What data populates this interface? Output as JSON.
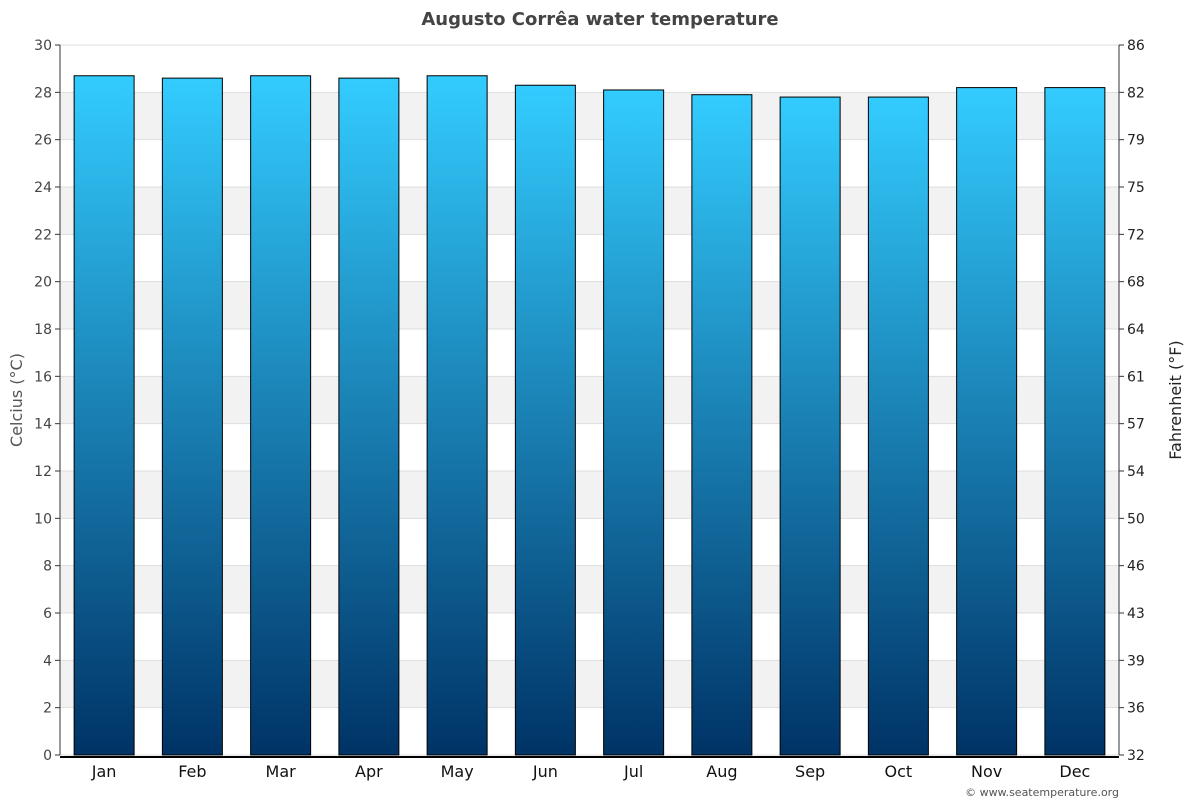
{
  "chart_data": {
    "type": "bar",
    "title": "Augusto Corrêa water temperature",
    "categories": [
      "Jan",
      "Feb",
      "Mar",
      "Apr",
      "May",
      "Jun",
      "Jul",
      "Aug",
      "Sep",
      "Oct",
      "Nov",
      "Dec"
    ],
    "values": [
      28.7,
      28.6,
      28.7,
      28.6,
      28.7,
      28.3,
      28.1,
      27.9,
      27.8,
      27.8,
      28.2,
      28.2
    ],
    "ylabel": "Celcius (°C)",
    "ylabel_right": "Fahrenheit (°F)",
    "ylim": [
      0,
      30
    ],
    "yticks": [
      "0",
      "2",
      "4",
      "6",
      "8",
      "10",
      "12",
      "14",
      "16",
      "18",
      "20",
      "22",
      "24",
      "26",
      "28",
      "30"
    ],
    "yticks_right": [
      "32",
      "36",
      "39",
      "43",
      "46",
      "50",
      "54",
      "57",
      "61",
      "64",
      "68",
      "72",
      "75",
      "79",
      "82",
      "86"
    ],
    "grid": true,
    "bar_color_top": "#33ccff",
    "bar_color_bottom": "#003366",
    "credit": "© www.seatemperature.org"
  }
}
